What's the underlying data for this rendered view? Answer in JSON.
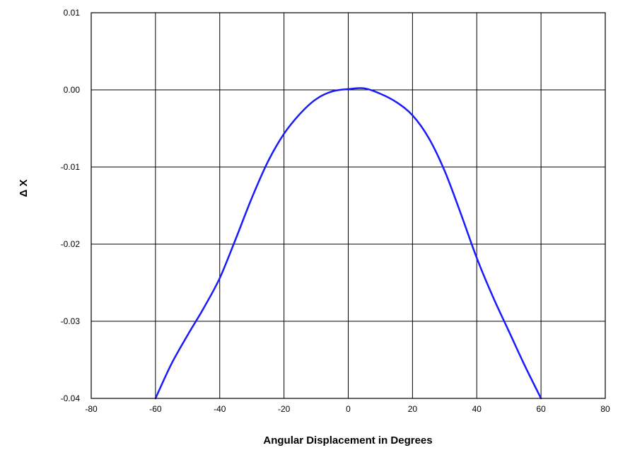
{
  "chart_data": {
    "type": "line",
    "title": "",
    "xlabel": "Angular Displacement in Degrees",
    "ylabel": "Δ X",
    "xlim": [
      -80,
      80
    ],
    "ylim": [
      -0.04,
      0.01
    ],
    "x_ticks": [
      -80,
      -60,
      -40,
      -20,
      0,
      20,
      40,
      60,
      80
    ],
    "x_tick_labels": [
      "-80",
      "-60",
      "-40",
      "-20",
      "0",
      "20",
      "40",
      "60",
      "80"
    ],
    "y_ticks": [
      -0.04,
      -0.03,
      -0.02,
      -0.01,
      0.0,
      0.01
    ],
    "y_tick_labels": [
      "-0.04",
      "-0.03",
      "-0.02",
      "-0.01",
      "0.00",
      "0.01"
    ],
    "grid": true,
    "legend": "none",
    "series": [
      {
        "color": "#1a1aff",
        "x": [
          -60,
          -55,
          -50,
          -45,
          -40,
          -35,
          -30,
          -25,
          -20,
          -15,
          -10,
          -5,
          0,
          5,
          10,
          15,
          20,
          25,
          30,
          35,
          40,
          45,
          50,
          55,
          60
        ],
        "y": [
          -0.04,
          -0.0355,
          -0.0318,
          -0.0283,
          -0.0244,
          -0.0193,
          -0.014,
          -0.0093,
          -0.0057,
          -0.0031,
          -0.0012,
          -0.0002,
          0.0001,
          0.0002,
          -0.0005,
          -0.0016,
          -0.0033,
          -0.0062,
          -0.0105,
          -0.016,
          -0.0218,
          -0.0268,
          -0.0313,
          -0.0358,
          -0.04
        ]
      }
    ]
  }
}
